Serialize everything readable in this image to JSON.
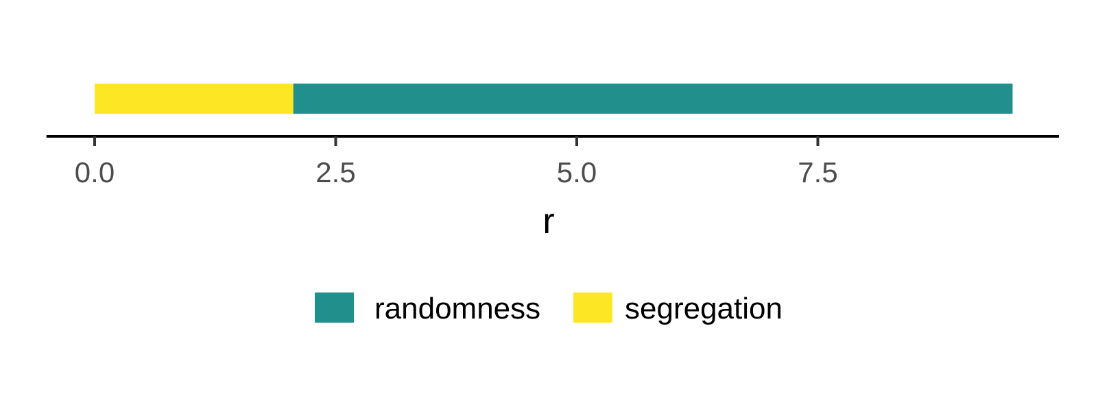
{
  "chart_data": {
    "type": "bar",
    "orientation": "horizontal",
    "stacked": true,
    "title": "",
    "xlabel": "r",
    "ylabel": "",
    "xlim": [
      -0.5,
      10.0
    ],
    "x_ticks": [
      0.0,
      2.5,
      5.0,
      7.5
    ],
    "x_tick_labels": [
      "0.0",
      "2.5",
      "5.0",
      "7.5"
    ],
    "grid": false,
    "legend_position": "bottom",
    "segments": [
      {
        "category": "segregation",
        "start": 0.0,
        "end": 2.06
      },
      {
        "category": "randomness",
        "start": 2.06,
        "end": 9.52
      }
    ],
    "legend": [
      {
        "label": "randomness",
        "color": "#21908C"
      },
      {
        "label": "segregation",
        "color": "#FDE725"
      }
    ]
  }
}
